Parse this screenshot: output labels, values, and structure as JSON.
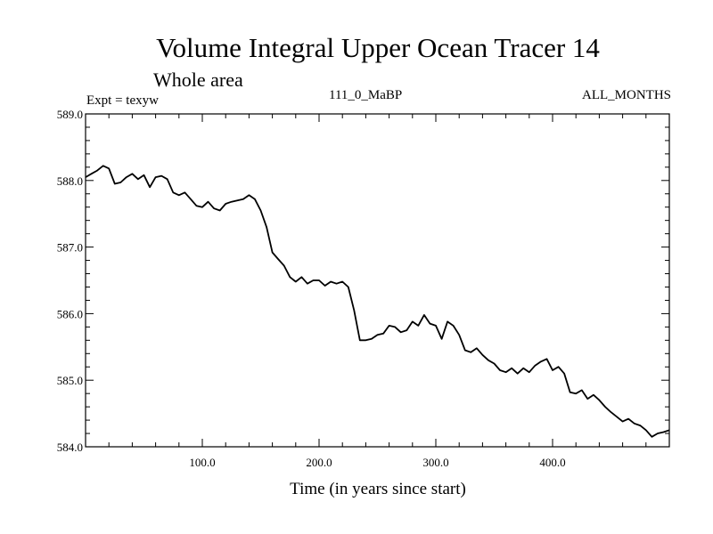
{
  "chart_data": {
    "type": "line",
    "title": "Volume Integral Upper Ocean Tracer 14",
    "subtitle": "Whole area",
    "annotations": {
      "left": "Expt = texyw",
      "center": "111_0_MaBP",
      "right": "ALL_MONTHS"
    },
    "xlabel": "Time (in years since start)",
    "ylabel": "",
    "xlim": [
      0,
      500
    ],
    "ylim": [
      584.0,
      589.0
    ],
    "x_ticks": [
      100,
      200,
      300,
      400
    ],
    "x_tick_labels": [
      "100.0",
      "200.0",
      "300.0",
      "400.0"
    ],
    "y_ticks": [
      584,
      585,
      586,
      587,
      588,
      589
    ],
    "y_tick_labels": [
      "584.0",
      "585.0",
      "586.0",
      "587.0",
      "588.0",
      "589.0"
    ],
    "grid": false,
    "series": [
      {
        "color": "#000000",
        "x": [
          0,
          5,
          10,
          15,
          20,
          25,
          30,
          35,
          40,
          45,
          50,
          55,
          60,
          65,
          70,
          75,
          80,
          85,
          90,
          95,
          100,
          105,
          110,
          115,
          120,
          125,
          130,
          135,
          140,
          145,
          150,
          155,
          160,
          165,
          170,
          175,
          180,
          185,
          190,
          195,
          200,
          205,
          210,
          215,
          220,
          225,
          230,
          235,
          240,
          245,
          250,
          255,
          260,
          265,
          270,
          275,
          280,
          285,
          290,
          295,
          300,
          305,
          310,
          315,
          320,
          325,
          330,
          335,
          340,
          345,
          350,
          355,
          360,
          365,
          370,
          375,
          380,
          385,
          390,
          395,
          400,
          405,
          410,
          415,
          420,
          425,
          430,
          435,
          440,
          445,
          450,
          455,
          460,
          465,
          470,
          475,
          480,
          485,
          490,
          495,
          500
        ],
        "y": [
          588.05,
          588.1,
          588.15,
          588.22,
          588.18,
          587.95,
          587.97,
          588.05,
          588.1,
          588.02,
          588.08,
          587.9,
          588.05,
          588.07,
          588.02,
          587.82,
          587.78,
          587.82,
          587.72,
          587.62,
          587.6,
          587.68,
          587.58,
          587.55,
          587.65,
          587.68,
          587.7,
          587.72,
          587.78,
          587.72,
          587.55,
          587.3,
          586.92,
          586.82,
          586.72,
          586.55,
          586.48,
          586.55,
          586.45,
          586.5,
          586.5,
          586.42,
          586.48,
          586.45,
          586.48,
          586.4,
          586.05,
          585.6,
          585.6,
          585.62,
          585.68,
          585.7,
          585.82,
          585.8,
          585.72,
          585.75,
          585.88,
          585.82,
          585.98,
          585.85,
          585.82,
          585.62,
          585.88,
          585.82,
          585.68,
          585.45,
          585.42,
          585.48,
          585.38,
          585.3,
          585.25,
          585.15,
          585.12,
          585.18,
          585.1,
          585.18,
          585.12,
          585.22,
          585.28,
          585.32,
          585.15,
          585.2,
          585.1,
          584.82,
          584.8,
          584.85,
          584.72,
          584.78,
          584.7,
          584.6,
          584.52,
          584.45,
          584.38,
          584.42,
          584.35,
          584.32,
          584.25,
          584.15,
          584.2,
          584.22,
          584.25
        ]
      }
    ]
  }
}
